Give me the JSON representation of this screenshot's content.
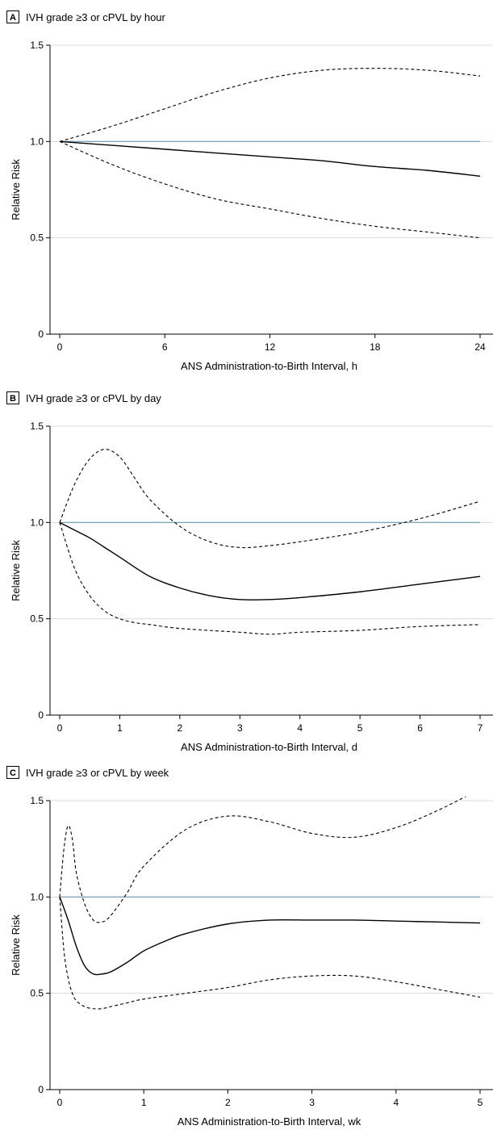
{
  "chart_data": [
    {
      "type": "line",
      "panel_letter": "A",
      "title": "IVH grade ≥3 or cPVL by hour",
      "xlabel": "ANS Administration-to-Birth Interval, h",
      "ylabel": "Relative Risk",
      "xlim": [
        0,
        24
      ],
      "ylim": [
        0,
        1.5
      ],
      "xticks": [
        0,
        6,
        12,
        18,
        24
      ],
      "yticks": [
        0,
        0.5,
        1.0,
        1.5
      ],
      "xtick_labels": [
        "0",
        "6",
        "12",
        "18",
        "24"
      ],
      "ytick_labels": [
        "0",
        "0.5",
        "1.0",
        "1.5"
      ],
      "grid": "horizontal",
      "reference": {
        "y": 1.0,
        "color": "#4aa3d8"
      },
      "series": [
        {
          "style": "solid",
          "x": [
            0,
            3,
            6,
            9,
            12,
            15,
            18,
            21,
            24
          ],
          "values": [
            1.0,
            0.98,
            0.96,
            0.94,
            0.92,
            0.9,
            0.87,
            0.85,
            0.82
          ]
        },
        {
          "style": "dashed",
          "x": [
            0,
            3,
            6,
            9,
            12,
            15,
            18,
            21,
            24
          ],
          "values": [
            1.0,
            1.08,
            1.17,
            1.26,
            1.33,
            1.37,
            1.38,
            1.37,
            1.34
          ]
        },
        {
          "style": "dashed",
          "x": [
            0,
            3,
            6,
            9,
            12,
            15,
            18,
            21,
            24
          ],
          "values": [
            1.0,
            0.88,
            0.78,
            0.7,
            0.65,
            0.6,
            0.56,
            0.53,
            0.5
          ]
        }
      ]
    },
    {
      "type": "line",
      "panel_letter": "B",
      "title": "IVH grade ≥3 or cPVL by day",
      "xlabel": "ANS Administration-to-Birth Interval, d",
      "ylabel": "Relative Risk",
      "xlim": [
        0,
        7
      ],
      "ylim": [
        0,
        1.5
      ],
      "xticks": [
        0,
        1,
        2,
        3,
        4,
        5,
        6,
        7
      ],
      "yticks": [
        0,
        0.5,
        1.0,
        1.5
      ],
      "xtick_labels": [
        "0",
        "1",
        "2",
        "3",
        "4",
        "5",
        "6",
        "7"
      ],
      "ytick_labels": [
        "0",
        "0.5",
        "1.0",
        "1.5"
      ],
      "grid": "horizontal",
      "reference": {
        "y": 1.0,
        "color": "#4aa3d8"
      },
      "series": [
        {
          "style": "solid",
          "x": [
            0,
            0.25,
            0.5,
            0.75,
            1,
            1.5,
            2,
            2.5,
            3,
            3.5,
            4,
            5,
            6,
            7
          ],
          "values": [
            1.0,
            0.96,
            0.92,
            0.87,
            0.82,
            0.72,
            0.66,
            0.62,
            0.6,
            0.6,
            0.61,
            0.64,
            0.68,
            0.72
          ]
        },
        {
          "style": "dashed",
          "x": [
            0,
            0.25,
            0.5,
            0.75,
            1,
            1.25,
            1.5,
            2,
            2.5,
            3,
            3.5,
            4,
            5,
            6,
            7
          ],
          "values": [
            1.0,
            1.2,
            1.33,
            1.38,
            1.34,
            1.23,
            1.12,
            0.98,
            0.9,
            0.87,
            0.88,
            0.9,
            0.95,
            1.02,
            1.11
          ]
        },
        {
          "style": "dashed",
          "x": [
            0,
            0.25,
            0.5,
            0.75,
            1,
            1.25,
            1.5,
            2,
            3,
            3.5,
            4,
            5,
            6,
            7
          ],
          "values": [
            1.0,
            0.76,
            0.62,
            0.54,
            0.5,
            0.48,
            0.47,
            0.45,
            0.43,
            0.42,
            0.43,
            0.44,
            0.46,
            0.47
          ]
        }
      ]
    },
    {
      "type": "line",
      "panel_letter": "C",
      "title": "IVH grade ≥3 or cPVL by week",
      "xlabel": "ANS Administration-to-Birth Interval, wk",
      "ylabel": "Relative Risk",
      "xlim": [
        0,
        5
      ],
      "ylim": [
        0,
        1.5
      ],
      "xticks": [
        0,
        1,
        2,
        3,
        4,
        5
      ],
      "yticks": [
        0,
        0.5,
        1.0,
        1.5
      ],
      "xtick_labels": [
        "0",
        "1",
        "2",
        "3",
        "4",
        "5"
      ],
      "ytick_labels": [
        "0",
        "0.5",
        "1.0",
        "1.5"
      ],
      "grid": "horizontal",
      "reference": {
        "y": 1.0,
        "color": "#4aa3d8"
      },
      "series": [
        {
          "style": "solid",
          "x": [
            0,
            0.1,
            0.2,
            0.3,
            0.4,
            0.5,
            0.6,
            0.8,
            1,
            1.25,
            1.5,
            2,
            2.5,
            3,
            3.5,
            4,
            4.5,
            5
          ],
          "values": [
            1.0,
            0.88,
            0.74,
            0.64,
            0.6,
            0.6,
            0.61,
            0.66,
            0.72,
            0.77,
            0.81,
            0.86,
            0.88,
            0.88,
            0.88,
            0.875,
            0.87,
            0.865
          ]
        },
        {
          "style": "dashed",
          "x": [
            0,
            0.05,
            0.1,
            0.15,
            0.2,
            0.3,
            0.4,
            0.5,
            0.6,
            0.8,
            1,
            1.5,
            2,
            2.5,
            3,
            3.5,
            4,
            4.5,
            5
          ],
          "values": [
            1.0,
            1.25,
            1.37,
            1.3,
            1.12,
            0.96,
            0.88,
            0.87,
            0.9,
            1.02,
            1.16,
            1.35,
            1.42,
            1.39,
            1.33,
            1.31,
            1.36,
            1.45,
            1.56
          ]
        },
        {
          "style": "dashed",
          "x": [
            0,
            0.05,
            0.1,
            0.15,
            0.2,
            0.3,
            0.4,
            0.5,
            0.6,
            0.8,
            1,
            1.5,
            2,
            2.5,
            3,
            3.5,
            4,
            4.5,
            5
          ],
          "values": [
            1.0,
            0.72,
            0.58,
            0.5,
            0.46,
            0.43,
            0.42,
            0.42,
            0.43,
            0.45,
            0.47,
            0.5,
            0.53,
            0.57,
            0.59,
            0.59,
            0.56,
            0.52,
            0.48
          ]
        }
      ]
    }
  ]
}
